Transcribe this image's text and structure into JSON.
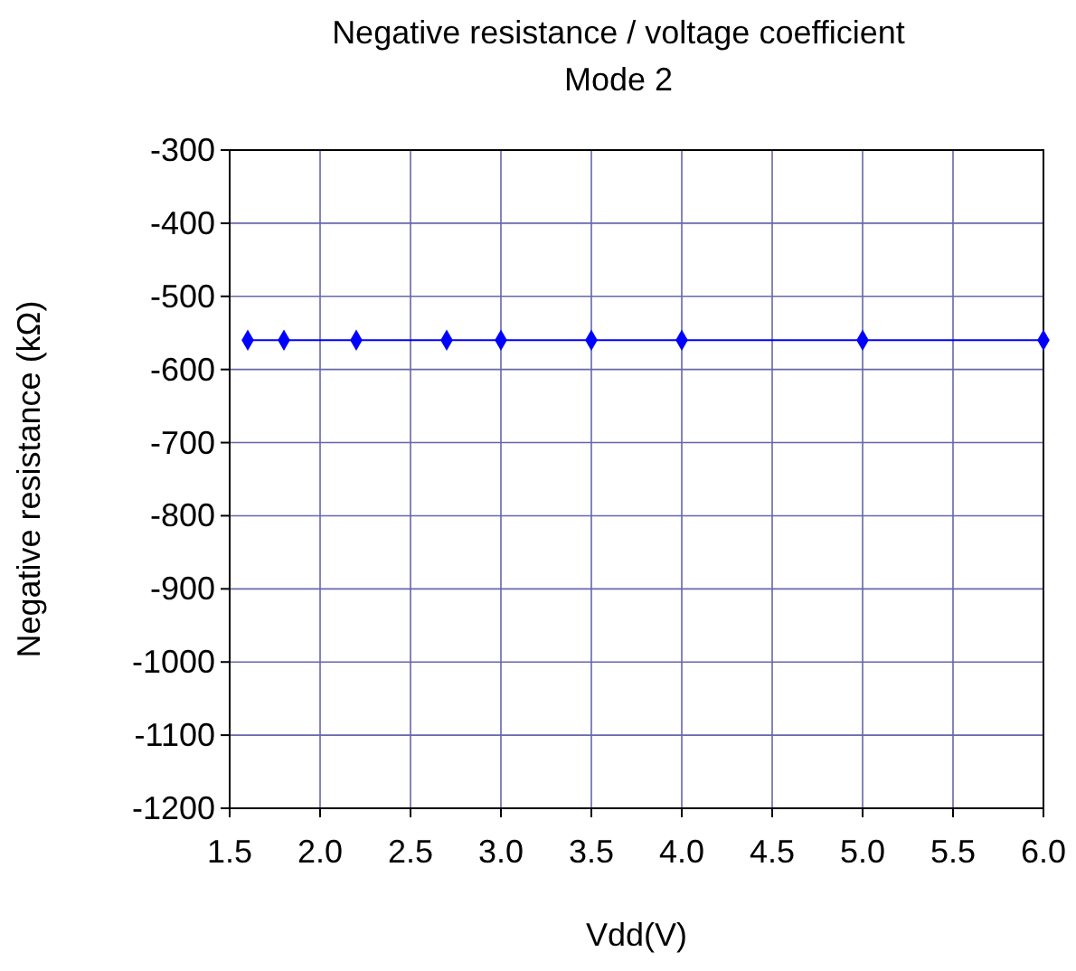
{
  "chart_data": {
    "type": "line",
    "title": "Negative resistance  / voltage coefficient",
    "subtitle": "Mode 2",
    "xlabel": "Vdd(V)",
    "ylabel": "Negative resistance  (kΩ)",
    "x": [
      1.6,
      1.8,
      2.2,
      2.7,
      3.0,
      3.5,
      4.0,
      5.0,
      6.0
    ],
    "series": [
      {
        "color": "#0000ff",
        "values": [
          -560,
          -560,
          -560,
          -560,
          -560,
          -560,
          -560,
          -560,
          -560
        ]
      }
    ],
    "xlim": [
      1.5,
      6.0
    ],
    "xticks": [
      {
        "value": 1.5,
        "label": "1.5"
      },
      {
        "value": 2,
        "label": "2.0"
      },
      {
        "value": 2.5,
        "label": "2.5"
      },
      {
        "value": 3,
        "label": "3.0"
      },
      {
        "value": 3.5,
        "label": "3.5"
      },
      {
        "value": 4,
        "label": "4.0"
      },
      {
        "value": 4.5,
        "label": "4.5"
      },
      {
        "value": 5,
        "label": "5.0"
      },
      {
        "value": 5.5,
        "label": "5.5"
      },
      {
        "value": 6,
        "label": "6.0"
      }
    ],
    "ylim": [
      -1200,
      -300
    ],
    "yticks": [
      -1200,
      -1100,
      -1000,
      -900,
      -800,
      -700,
      -600,
      -500,
      -400,
      -300
    ],
    "grid": true,
    "marker": "diamond",
    "line_style": "solid"
  }
}
